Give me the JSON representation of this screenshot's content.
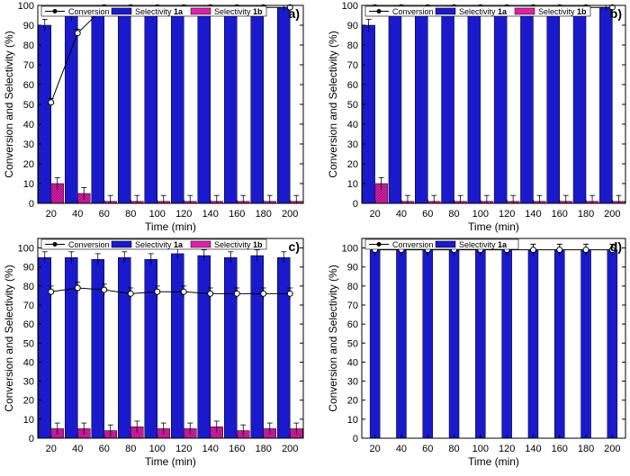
{
  "figure": {
    "title": ""
  },
  "colors": {
    "selectivity_1a": "#1a1acc",
    "selectivity_1b": "#dd22aa",
    "conversion_line": "#000000",
    "marker_fill": "#ffffff",
    "axis": "#000000"
  },
  "chart_data": [
    {
      "type": "bar",
      "panel_label": "a)",
      "title": "",
      "xlabel": "Time (min)",
      "ylabel": "Conversion and Selectivity (%)",
      "categories": [
        "20",
        "40",
        "60",
        "80",
        "100",
        "120",
        "140",
        "160",
        "180",
        "200"
      ],
      "ylim": [
        0,
        100
      ],
      "yticks": [
        0,
        10,
        20,
        30,
        40,
        50,
        60,
        70,
        80,
        90,
        100
      ],
      "yticklabels": [
        "0",
        "10",
        "20",
        "30",
        "40",
        "50",
        "60",
        "70",
        "80",
        "90",
        "100"
      ],
      "series": [
        {
          "name": "Selectivity 1a",
          "kind": "bar",
          "values": [
            90,
            95,
            99,
            99,
            99,
            99,
            99,
            99,
            99,
            99
          ],
          "errors": [
            3,
            3,
            2,
            2,
            2,
            2,
            2,
            2,
            2,
            2
          ]
        },
        {
          "name": "Selectivity 1b",
          "kind": "bar",
          "values": [
            10,
            5,
            1,
            1,
            1,
            1,
            1,
            1,
            1,
            1
          ],
          "errors": [
            3,
            3,
            3,
            3,
            3,
            3,
            3,
            3,
            3,
            3
          ]
        },
        {
          "name": "Conversion",
          "kind": "line",
          "values": [
            51,
            86,
            99,
            99,
            99,
            99,
            99,
            99,
            99,
            99
          ],
          "errors": [
            2,
            2,
            2,
            2,
            2,
            2,
            2,
            2,
            2,
            2
          ]
        }
      ],
      "legend": [
        {
          "label": "Conversion",
          "kind": "line"
        },
        {
          "label": "Selectivity ",
          "sub": "1a",
          "kind": "bar1a"
        },
        {
          "label": "Selectivity ",
          "sub": "1b",
          "kind": "bar1b"
        }
      ],
      "legend_position": "top-left"
    },
    {
      "type": "bar",
      "panel_label": "b)",
      "title": "",
      "xlabel": "Time (min)",
      "ylabel": "Conversion and Selectivity (%)",
      "categories": [
        "20",
        "40",
        "60",
        "80",
        "100",
        "120",
        "140",
        "160",
        "180",
        "200"
      ],
      "ylim": [
        0,
        100
      ],
      "yticks": [
        0,
        10,
        20,
        30,
        40,
        50,
        60,
        70,
        80,
        90,
        100
      ],
      "yticklabels": [
        "0",
        "10",
        "20",
        "30",
        "40",
        "50",
        "60",
        "70",
        "80",
        "90",
        "100"
      ],
      "series": [
        {
          "name": "Selectivity 1a",
          "kind": "bar",
          "values": [
            90,
            99,
            99,
            99,
            99,
            99,
            99,
            99,
            99,
            99
          ],
          "errors": [
            3,
            2,
            2,
            2,
            2,
            2,
            2,
            2,
            2,
            2
          ]
        },
        {
          "name": "Selectivity 1b",
          "kind": "bar",
          "values": [
            10,
            1,
            1,
            1,
            1,
            1,
            1,
            1,
            1,
            1
          ],
          "errors": [
            3,
            3,
            3,
            3,
            3,
            3,
            3,
            3,
            3,
            3
          ]
        },
        {
          "name": "Conversion",
          "kind": "line",
          "values": [
            99,
            99,
            99,
            99,
            99,
            99,
            99,
            99,
            99,
            99
          ],
          "errors": [
            2,
            2,
            2,
            2,
            2,
            2,
            2,
            2,
            2,
            2
          ]
        }
      ],
      "legend": [
        {
          "label": "Conversion",
          "kind": "line"
        },
        {
          "label": "Selectivity ",
          "sub": "1a",
          "kind": "bar1a"
        },
        {
          "label": "Selectivity ",
          "sub": "1b",
          "kind": "bar1b"
        }
      ],
      "legend_position": "top-left"
    },
    {
      "type": "bar",
      "panel_label": "c)",
      "title": "",
      "xlabel": "Time (min)",
      "ylabel": "Conversion and Selectivity (%)",
      "categories": [
        "20",
        "40",
        "60",
        "80",
        "100",
        "120",
        "140",
        "160",
        "180",
        "200"
      ],
      "ylim": [
        0,
        105
      ],
      "yticks": [
        0,
        10,
        20,
        30,
        40,
        50,
        60,
        70,
        80,
        90,
        100
      ],
      "yticklabels": [
        "0",
        "10",
        "20",
        "30",
        "40",
        "50",
        "60",
        "70",
        "80",
        "90",
        "100"
      ],
      "series": [
        {
          "name": "Selectivity 1a",
          "kind": "bar",
          "values": [
            95,
            95,
            94,
            95,
            94,
            97,
            96,
            95,
            96,
            95
          ],
          "errors": [
            3,
            3,
            3,
            3,
            3,
            3,
            3,
            3,
            3,
            3
          ]
        },
        {
          "name": "Selectivity 1b",
          "kind": "bar",
          "values": [
            5,
            5,
            4,
            6,
            5,
            5,
            6,
            4,
            5,
            5
          ],
          "errors": [
            3,
            3,
            3,
            3,
            3,
            3,
            3,
            3,
            3,
            3
          ]
        },
        {
          "name": "Conversion",
          "kind": "line",
          "values": [
            77,
            79,
            78,
            76,
            77,
            77,
            76,
            76,
            76,
            76
          ],
          "errors": [
            3,
            3,
            3,
            3,
            3,
            3,
            3,
            3,
            3,
            3
          ]
        }
      ],
      "legend": [
        {
          "label": "Conversion",
          "kind": "line"
        },
        {
          "label": "Selectivity ",
          "sub": "1a",
          "kind": "bar1a"
        },
        {
          "label": "Selectivity ",
          "sub": "1b",
          "kind": "bar1b"
        }
      ],
      "legend_position": "top-left"
    },
    {
      "type": "bar",
      "panel_label": "d)",
      "title": "",
      "xlabel": "Time (min)",
      "ylabel": "Conversion and Selectivity (%)",
      "categories": [
        "20",
        "40",
        "60",
        "80",
        "100",
        "120",
        "140",
        "160",
        "180",
        "200"
      ],
      "ylim": [
        0,
        105
      ],
      "yticks": [
        0,
        10,
        20,
        30,
        40,
        50,
        60,
        70,
        80,
        90,
        100
      ],
      "yticklabels": [
        "0",
        "10",
        "20",
        "30",
        "40",
        "50",
        "60",
        "70",
        "80",
        "90",
        "100"
      ],
      "series": [
        {
          "name": "Selectivity 1a",
          "kind": "bar",
          "values": [
            99,
            99,
            99,
            99,
            99,
            99,
            99,
            99,
            99,
            99
          ],
          "errors": [
            3,
            3,
            3,
            3,
            3,
            3,
            3,
            3,
            3,
            3
          ]
        },
        {
          "name": "Conversion",
          "kind": "line",
          "values": [
            99,
            99,
            99,
            99,
            99,
            99,
            99,
            99,
            99,
            99
          ],
          "errors": [
            3,
            3,
            3,
            3,
            3,
            3,
            3,
            3,
            3,
            3
          ]
        }
      ],
      "legend": [
        {
          "label": "Conversion",
          "kind": "line"
        },
        {
          "label": "Selectivity ",
          "sub": "1a",
          "kind": "bar1a"
        }
      ],
      "legend_position": "top-left"
    }
  ]
}
